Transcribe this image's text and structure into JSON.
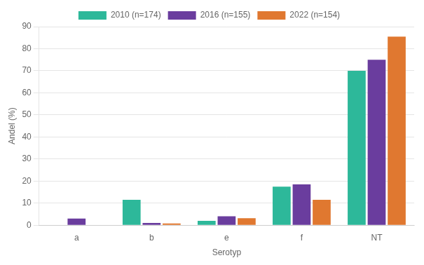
{
  "chart_data": {
    "type": "bar",
    "xlabel": "Serotyp",
    "ylabel": "Andel (%)",
    "categories": [
      "a",
      "b",
      "e",
      "f",
      "NT"
    ],
    "series": [
      {
        "name": "2010 (n=174)",
        "color": "#2db89a",
        "values": [
          0,
          11.5,
          2,
          17.5,
          70
        ]
      },
      {
        "name": "2016 (n=155)",
        "color": "#6a3d9e",
        "values": [
          3,
          1,
          4,
          18.5,
          75
        ]
      },
      {
        "name": "2022 (n=154)",
        "color": "#e07830",
        "values": [
          0,
          0.8,
          3.2,
          11.5,
          85.5
        ]
      }
    ],
    "ylim": [
      0,
      90
    ],
    "yticks": [
      0,
      10,
      20,
      30,
      40,
      50,
      60,
      70,
      80,
      90
    ],
    "grid": true,
    "legend": "top"
  }
}
